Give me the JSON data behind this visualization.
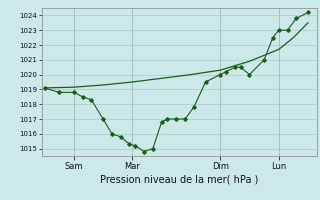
{
  "background_color": "#cce8e8",
  "grid_color": "#aacccc",
  "line_color": "#1a5c1a",
  "title": "Pression niveau de la mer( hPa )",
  "ylim": [
    1014.5,
    1024.5
  ],
  "yticks": [
    1015,
    1016,
    1017,
    1018,
    1019,
    1020,
    1021,
    1022,
    1023,
    1024
  ],
  "x_tick_labels": [
    "Sam",
    "Mar",
    "Dim",
    "Lun"
  ],
  "x_tick_positions": [
    1,
    3,
    6,
    8
  ],
  "smooth_line": [
    [
      0,
      1019.1
    ],
    [
      1,
      1019.15
    ],
    [
      2,
      1019.3
    ],
    [
      3,
      1019.5
    ],
    [
      4,
      1019.75
    ],
    [
      5,
      1020.0
    ],
    [
      6,
      1020.3
    ],
    [
      7,
      1020.9
    ],
    [
      8,
      1021.7
    ],
    [
      8.5,
      1022.5
    ],
    [
      9,
      1023.5
    ]
  ],
  "detail_line": [
    [
      0,
      1019.1
    ],
    [
      0.5,
      1018.8
    ],
    [
      1,
      1018.8
    ],
    [
      1.3,
      1018.5
    ],
    [
      1.6,
      1018.3
    ],
    [
      2.0,
      1017.0
    ],
    [
      2.3,
      1016.0
    ],
    [
      2.6,
      1015.8
    ],
    [
      2.9,
      1015.3
    ],
    [
      3.1,
      1015.2
    ],
    [
      3.4,
      1014.8
    ],
    [
      3.7,
      1015.0
    ],
    [
      4.0,
      1016.8
    ],
    [
      4.2,
      1017.0
    ],
    [
      4.5,
      1017.0
    ],
    [
      4.8,
      1017.0
    ],
    [
      5.1,
      1017.8
    ],
    [
      5.5,
      1019.5
    ],
    [
      6.0,
      1020.0
    ],
    [
      6.2,
      1020.2
    ],
    [
      6.5,
      1020.5
    ],
    [
      6.7,
      1020.5
    ],
    [
      7.0,
      1020.0
    ],
    [
      7.5,
      1021.0
    ],
    [
      7.8,
      1022.5
    ],
    [
      8.0,
      1023.0
    ],
    [
      8.3,
      1023.0
    ],
    [
      8.6,
      1023.8
    ],
    [
      9.0,
      1024.2
    ]
  ],
  "vline_positions": [
    1,
    3,
    6,
    8
  ],
  "xlim": [
    -0.1,
    9.3
  ],
  "ytick_fontsize": 5.0,
  "xtick_fontsize": 6.0,
  "xlabel_fontsize": 7.0
}
